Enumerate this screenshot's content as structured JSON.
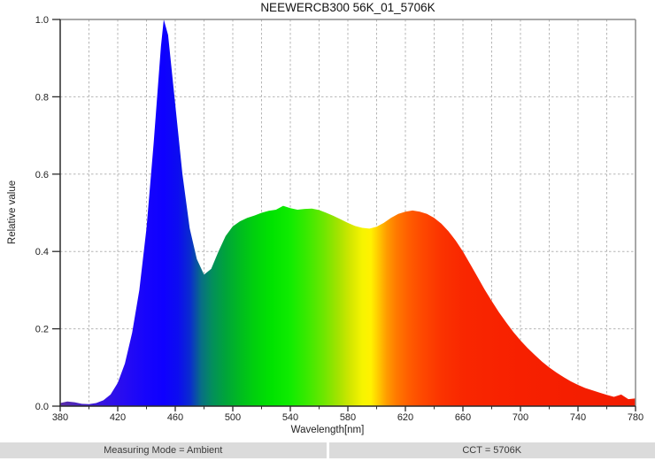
{
  "title": "NEEWERCB300 56K_01_5706K",
  "footer": {
    "measuring_mode": "Measuring Mode = Ambient",
    "cct": "CCT = 5706K"
  },
  "colors": {
    "axis": "#2b2b2b",
    "frame": "#8a8a8a",
    "grid": "#b5b5b5",
    "tick_text": "#222222",
    "footer_bg": "#dbdbdb",
    "background": "#ffffff"
  },
  "chart_data": {
    "type": "area",
    "title": "NEEWERCB300 56K_01_5706K",
    "xlabel": "Wavelength[nm]",
    "ylabel": "Relative value",
    "xlim": [
      380,
      780
    ],
    "ylim": [
      0,
      1.0
    ],
    "grid": "dashed",
    "x_major_ticks": [
      380,
      420,
      460,
      500,
      540,
      580,
      620,
      660,
      700,
      740,
      780
    ],
    "x_grid_step": 20,
    "y_ticks": [
      0,
      0.2,
      0.4,
      0.6,
      0.8,
      1.0
    ],
    "y_tick_labels": [
      "0.0",
      "0.2",
      "0.4",
      "0.6",
      "0.8",
      "1.0"
    ],
    "x": [
      380,
      385,
      390,
      395,
      400,
      405,
      410,
      415,
      420,
      425,
      430,
      435,
      440,
      445,
      450,
      452,
      455,
      460,
      465,
      470,
      475,
      480,
      485,
      490,
      495,
      500,
      505,
      510,
      515,
      520,
      525,
      530,
      535,
      540,
      545,
      550,
      555,
      560,
      565,
      570,
      575,
      580,
      585,
      590,
      595,
      600,
      605,
      610,
      615,
      620,
      625,
      630,
      635,
      640,
      645,
      650,
      655,
      660,
      665,
      670,
      675,
      680,
      685,
      690,
      695,
      700,
      705,
      710,
      715,
      720,
      725,
      730,
      735,
      740,
      745,
      750,
      755,
      760,
      765,
      770,
      775,
      780
    ],
    "y": [
      0.008,
      0.012,
      0.01,
      0.006,
      0.005,
      0.008,
      0.015,
      0.03,
      0.06,
      0.11,
      0.19,
      0.3,
      0.46,
      0.68,
      0.93,
      1.0,
      0.96,
      0.78,
      0.6,
      0.46,
      0.38,
      0.34,
      0.355,
      0.4,
      0.44,
      0.465,
      0.478,
      0.487,
      0.493,
      0.5,
      0.505,
      0.508,
      0.518,
      0.512,
      0.508,
      0.51,
      0.511,
      0.507,
      0.5,
      0.492,
      0.483,
      0.474,
      0.466,
      0.461,
      0.459,
      0.464,
      0.474,
      0.487,
      0.497,
      0.503,
      0.506,
      0.503,
      0.497,
      0.487,
      0.472,
      0.452,
      0.428,
      0.4,
      0.368,
      0.335,
      0.302,
      0.272,
      0.243,
      0.217,
      0.192,
      0.17,
      0.15,
      0.132,
      0.115,
      0.1,
      0.087,
      0.075,
      0.064,
      0.055,
      0.047,
      0.041,
      0.035,
      0.029,
      0.024,
      0.03,
      0.018,
      0.02
    ],
    "fill_gradient": [
      {
        "wavelength": 380,
        "color": "#5a2ea6"
      },
      {
        "wavelength": 395,
        "color": "#4521c6"
      },
      {
        "wavelength": 410,
        "color": "#3514e2"
      },
      {
        "wavelength": 425,
        "color": "#260bf2"
      },
      {
        "wavelength": 440,
        "color": "#1604fc"
      },
      {
        "wavelength": 452,
        "color": "#0e00ff"
      },
      {
        "wavelength": 462,
        "color": "#0c0cf0"
      },
      {
        "wavelength": 470,
        "color": "#0a2ad0"
      },
      {
        "wavelength": 478,
        "color": "#086e85"
      },
      {
        "wavelength": 486,
        "color": "#03905a"
      },
      {
        "wavelength": 495,
        "color": "#00a43a"
      },
      {
        "wavelength": 505,
        "color": "#00bb20"
      },
      {
        "wavelength": 515,
        "color": "#00d00d"
      },
      {
        "wavelength": 527,
        "color": "#00e300"
      },
      {
        "wavelength": 540,
        "color": "#10ec00"
      },
      {
        "wavelength": 552,
        "color": "#3bea00"
      },
      {
        "wavelength": 563,
        "color": "#6ce700"
      },
      {
        "wavelength": 573,
        "color": "#a2e300"
      },
      {
        "wavelength": 582,
        "color": "#d4e700"
      },
      {
        "wavelength": 590,
        "color": "#f6f400"
      },
      {
        "wavelength": 596,
        "color": "#fff200"
      },
      {
        "wavelength": 602,
        "color": "#ffc400"
      },
      {
        "wavelength": 607,
        "color": "#ff9c00"
      },
      {
        "wavelength": 614,
        "color": "#ff7800"
      },
      {
        "wavelength": 622,
        "color": "#ff5e00"
      },
      {
        "wavelength": 632,
        "color": "#fe4800"
      },
      {
        "wavelength": 645,
        "color": "#fb3300"
      },
      {
        "wavelength": 660,
        "color": "#f92700"
      },
      {
        "wavelength": 700,
        "color": "#f72000"
      },
      {
        "wavelength": 780,
        "color": "#f21c00"
      }
    ]
  }
}
